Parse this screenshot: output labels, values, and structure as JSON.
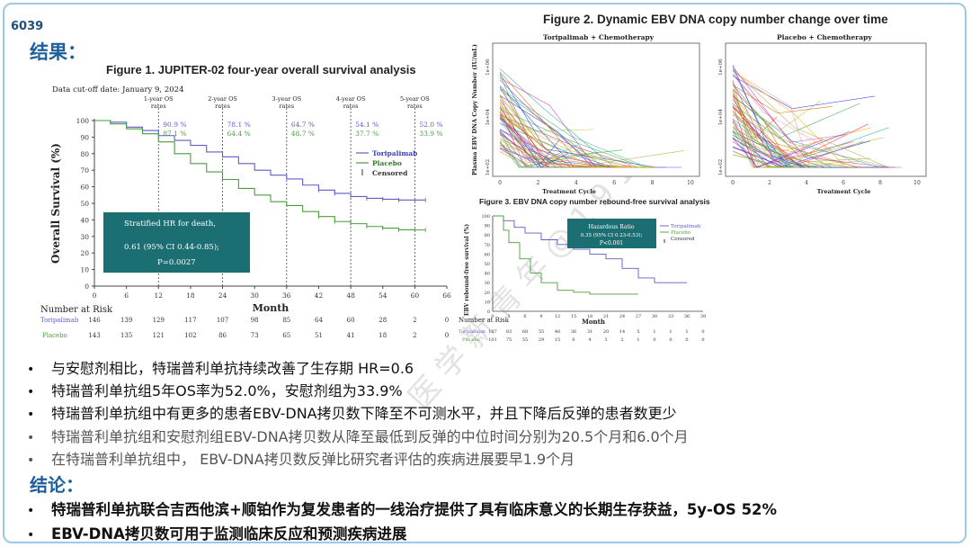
{
  "slide_number": "6039",
  "results_heading": "结果：",
  "conclusion_heading": "结论：",
  "bullets": [
    "与安慰剂相比，特瑞普利单抗持续改善了生存期 HR=0.6",
    "特瑞普利单抗组5年OS率为52.0%，安慰剂组为33.9%",
    "特瑞普利单抗组中有更多的患者EBV-DNA拷贝数下降至不可测水平，并且下降后反弹的患者数更少",
    "特瑞普利单抗组和安慰剂组EBV-DNA拷贝数从降至最低到反弹的中位时间分别为20.5个月和6.0个月",
    "在特瑞普利单抗组中， EBV-DNA拷贝数反弹比研究者评估的疾病进展要早1.9个月"
  ],
  "conclusions": [
    "特瑞普利单抗联合吉西他滨+顺铂作为复发患者的一线治疗提供了具有临床意义的长期生存获益，5y-OS 52%",
    "EBV-DNA拷贝数可用于监测临床反应和预测疾病进展"
  ],
  "figure1": {
    "title": "Figure 1. JUPITER-02 four-year overall survival analysis",
    "cutoff": "Data cut-off date: January 9, 2024",
    "hr_box": [
      "Stratified HR for death,",
      "0.61 (95% CI 0.44-0.85);",
      "P=0.0027"
    ],
    "number_at_risk_label": "Number at Risk",
    "month_label": "Month"
  },
  "figure2": {
    "title": "Figure 2. Dynamic EBV DNA copy number change over time",
    "left_title": "Toripalimab + Chemotherapy",
    "right_title": "Placebo + Chemotherapy",
    "ylabel": "Plasma EBV DNA Copy Number (IU/mL)",
    "xlabel": "Treatment Cycle",
    "ytick_labels": [
      "1e+06",
      "1e+04",
      "1e+02"
    ],
    "xtick_labels": [
      "0",
      "2",
      "4",
      "6",
      "8",
      "10"
    ]
  },
  "figure3": {
    "title": "Figure 3. EBV DNA copy number rebound-free survival analysis",
    "box": [
      "Hazardous Ratio",
      "0.35 (95% CI 0.23-0.53);",
      "P<0.001"
    ],
    "legend": [
      "Toripalimab",
      "Placebo",
      "Censored"
    ],
    "ylabel": "EBV rebound-free survival (%)",
    "number_at_risk_label": "Number at Risk",
    "month_label": "Month"
  },
  "chart_data": [
    {
      "type": "line",
      "title": "Figure 1. JUPITER-02 four-year overall survival analysis",
      "xlabel": "Month",
      "ylabel": "Overall Survival (%)",
      "xlim": [
        0,
        66
      ],
      "ylim": [
        0,
        100
      ],
      "xticks": [
        0,
        6,
        12,
        18,
        24,
        30,
        36,
        42,
        48,
        54,
        60,
        66
      ],
      "yticks": [
        0,
        10,
        20,
        30,
        40,
        50,
        60,
        70,
        80,
        90,
        100
      ],
      "landmarks": [
        {
          "month": 12,
          "label": "1-year OS rates",
          "toripalimab": "90.9 %",
          "placebo": "87.1 %"
        },
        {
          "month": 24,
          "label": "2-year OS rates",
          "toripalimab": "78.1 %",
          "placebo": "64.4 %"
        },
        {
          "month": 36,
          "label": "3-year OS rates",
          "toripalimab": "64.7 %",
          "placebo": "48.7 %"
        },
        {
          "month": 48,
          "label": "4-year OS rates",
          "toripalimab": "54.1 %",
          "placebo": "37.7 %"
        },
        {
          "month": 60,
          "label": "5-year OS rates",
          "toripalimab": "52.0 %",
          "placebo": "33.9 %"
        }
      ],
      "series": [
        {
          "name": "Toripalimab",
          "color": "#5a5ec8",
          "x": [
            0,
            3,
            6,
            9,
            12,
            15,
            18,
            21,
            24,
            27,
            30,
            33,
            36,
            39,
            42,
            45,
            48,
            51,
            54,
            57,
            60,
            62
          ],
          "y": [
            100,
            99,
            96,
            94,
            90.9,
            88,
            85,
            81,
            78.1,
            74,
            70,
            67,
            64.7,
            61,
            58,
            56,
            54.1,
            53,
            52.5,
            52,
            52.0,
            52.0
          ]
        },
        {
          "name": "Placebo",
          "color": "#4a9e3e",
          "x": [
            0,
            3,
            6,
            9,
            12,
            15,
            18,
            21,
            24,
            27,
            30,
            33,
            36,
            39,
            42,
            45,
            48,
            51,
            54,
            57,
            60,
            62
          ],
          "y": [
            100,
            98,
            95,
            92,
            87.1,
            80,
            74,
            69,
            64.4,
            59,
            55,
            51,
            48.7,
            45,
            42,
            39,
            37.7,
            36,
            35,
            34,
            33.9,
            33.9
          ]
        }
      ],
      "legend": [
        "Toripalimab",
        "Placebo",
        "Censored"
      ],
      "number_at_risk": {
        "months": [
          0,
          6,
          12,
          18,
          24,
          30,
          36,
          42,
          48,
          54,
          60,
          66
        ],
        "Toripalimab": [
          "146",
          "139",
          "129",
          "117",
          "107",
          "98",
          "85",
          "64",
          "60",
          "28",
          "2",
          "0"
        ],
        "Placebo": [
          "143",
          "135",
          "121",
          "102",
          "86",
          "73",
          "65",
          "51",
          "41",
          "18",
          "2",
          "0"
        ]
      }
    },
    {
      "type": "line",
      "title": "Figure 2. Dynamic EBV DNA copy number change over time",
      "panels": [
        "Toripalimab + Chemotherapy",
        "Placebo + Chemotherapy"
      ],
      "xlabel": "Treatment Cycle",
      "ylabel": "Plasma EBV DNA Copy Number (IU/mL)",
      "xlim": [
        0,
        10
      ],
      "y_scale": "log",
      "yticks": [
        "1e+02",
        "1e+04",
        "1e+06"
      ]
    },
    {
      "type": "line",
      "title": "Figure 3. EBV DNA copy number rebound-free survival analysis",
      "xlabel": "Month",
      "ylabel": "EBV rebound-free survival (%)",
      "xlim": [
        0,
        39
      ],
      "ylim": [
        0,
        100
      ],
      "xticks": [
        0,
        3,
        6,
        9,
        12,
        15,
        18,
        21,
        24,
        27,
        30,
        33,
        36,
        39
      ],
      "yticks": [
        0,
        10,
        20,
        30,
        40,
        50,
        60,
        70,
        80,
        90,
        100
      ],
      "series": [
        {
          "name": "Toripalimab",
          "color": "#5a5ec8",
          "x": [
            0,
            2,
            4,
            6,
            9,
            12,
            15,
            18,
            21,
            24,
            27,
            30,
            33,
            36
          ],
          "y": [
            100,
            95,
            88,
            82,
            75,
            70,
            65,
            60,
            55,
            45,
            35,
            30,
            30,
            30
          ]
        },
        {
          "name": "Placebo",
          "color": "#4a9e3e",
          "x": [
            0,
            2,
            3,
            5,
            7,
            9,
            12,
            15,
            18,
            21,
            24,
            27
          ],
          "y": [
            100,
            85,
            72,
            55,
            40,
            30,
            22,
            20,
            18,
            18,
            18,
            18
          ]
        }
      ],
      "number_at_risk": {
        "months": [
          0,
          3,
          6,
          9,
          12,
          15,
          18,
          21,
          24,
          27,
          30,
          33,
          36,
          39
        ],
        "Toripalimab": [
          "107",
          "83",
          "68",
          "55",
          "46",
          "36",
          "31",
          "20",
          "14",
          "5",
          "1",
          "1",
          "1",
          "0"
        ],
        "Placebo": [
          "101",
          "75",
          "55",
          "29",
          "15",
          "6",
          "4",
          "3",
          "2",
          "1",
          "0",
          "0",
          "0",
          "0"
        ]
      }
    }
  ]
}
